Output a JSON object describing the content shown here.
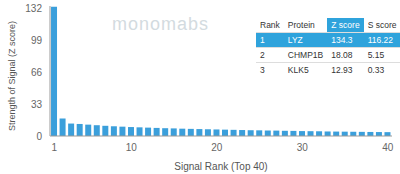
{
  "chart_data": {
    "type": "bar",
    "x_label": "Signal Rank (Top 40)",
    "y_label": "Strength of Signal (Z score)",
    "annotations": [
      "monomabs"
    ],
    "categories": [
      "1",
      null,
      null,
      null,
      null,
      null,
      null,
      null,
      null,
      "10",
      null,
      null,
      null,
      null,
      null,
      null,
      null,
      null,
      null,
      "20",
      null,
      null,
      null,
      null,
      null,
      null,
      null,
      null,
      null,
      "30",
      null,
      null,
      null,
      null,
      null,
      null,
      null,
      null,
      null,
      "40"
    ],
    "values": [
      134.3,
      18.08,
      12.93,
      12.5,
      11.8,
      11.2,
      10.6,
      10.1,
      9.7,
      9.3,
      9.0,
      8.7,
      8.4,
      8.1,
      7.9,
      7.6,
      7.4,
      7.2,
      7.0,
      6.8,
      6.6,
      6.4,
      6.2,
      6.0,
      5.9,
      5.7,
      5.6,
      5.4,
      5.3,
      5.1,
      5.0,
      4.9,
      4.7,
      4.6,
      4.5,
      4.4,
      4.3,
      4.2,
      4.1,
      4.0
    ],
    "color": "#3b9fdb",
    "ylim": [
      0,
      135
    ],
    "yticks": [
      0,
      33,
      66,
      99,
      132
    ],
    "grid": false,
    "table": {
      "header": [
        "Rank",
        "Protein",
        "Z score",
        "S score"
      ],
      "rows": [
        [
          1,
          "LYZ",
          134.3,
          116.22
        ],
        [
          2,
          "CHMP1B",
          18.08,
          5.15
        ],
        [
          3,
          "KLK5",
          12.93,
          0.33
        ]
      ]
    }
  }
}
